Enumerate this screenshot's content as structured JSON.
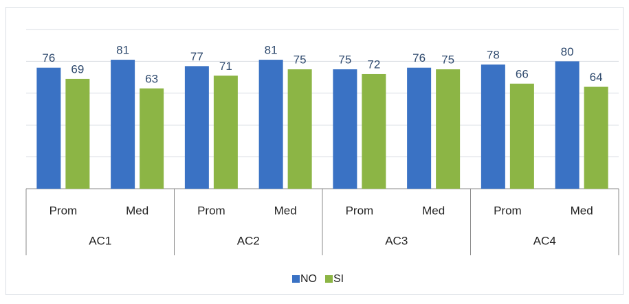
{
  "chart_data": {
    "type": "bar",
    "categories": [
      "Prom",
      "Med",
      "Prom",
      "Med",
      "Prom",
      "Med",
      "Prom",
      "Med"
    ],
    "groups": [
      "AC1",
      "AC2",
      "AC3",
      "AC4"
    ],
    "series": [
      {
        "name": "NO",
        "color": "#3a72c4",
        "values": [
          76,
          81,
          77,
          81,
          75,
          76,
          78,
          80
        ]
      },
      {
        "name": "SI",
        "color": "#8cb545",
        "values": [
          69,
          63,
          71,
          75,
          72,
          75,
          66,
          64
        ]
      }
    ],
    "ylim": [
      0,
      100
    ],
    "yticks": [
      0,
      20,
      40,
      60,
      80,
      100
    ],
    "grid": true,
    "legend": "bottom"
  }
}
